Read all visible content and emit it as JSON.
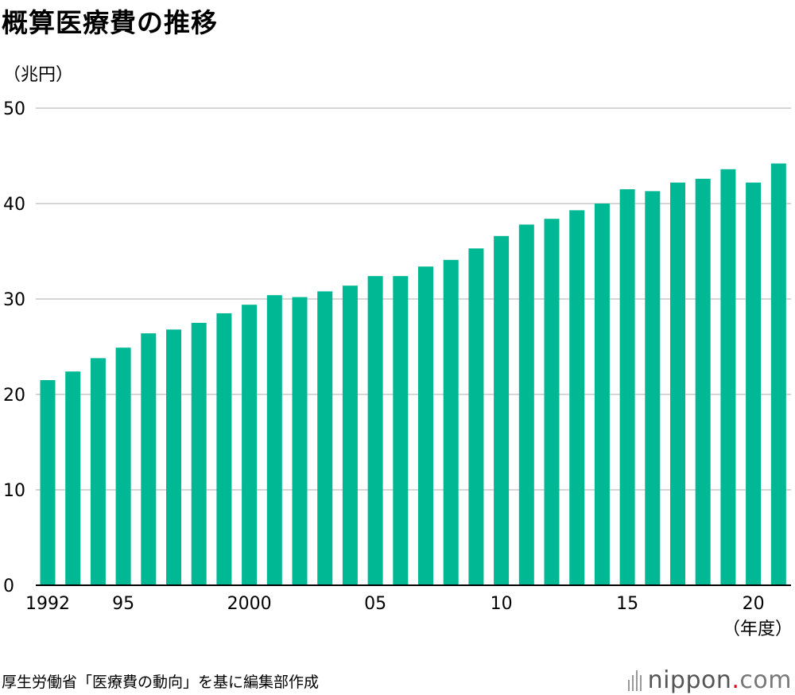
{
  "title": "概算医療費の推移",
  "source": "厚生労働省「医療費の動向」を基に編集部作成",
  "brand": {
    "name": "nippon",
    "dot": ".",
    "tld": "com",
    "icon": "nippon-bars-logo-icon"
  },
  "colors": {
    "bar": "#00b894",
    "grid": "#c8c8c8",
    "axis": "#000000",
    "brand_dot": "#e60012"
  },
  "chart_data": {
    "type": "bar",
    "title": "概算医療費の推移",
    "ylabel": "（兆円）",
    "xlabel": "（年度）",
    "ylim": [
      0,
      50
    ],
    "yticks": [
      0,
      10,
      20,
      30,
      40,
      50
    ],
    "grid": true,
    "categories": [
      1992,
      1993,
      1994,
      1995,
      1996,
      1997,
      1998,
      1999,
      2000,
      2001,
      2002,
      2003,
      2004,
      2005,
      2006,
      2007,
      2008,
      2009,
      2010,
      2011,
      2012,
      2013,
      2014,
      2015,
      2016,
      2017,
      2018,
      2019,
      2020,
      2021
    ],
    "values": [
      21.5,
      22.4,
      23.8,
      24.9,
      26.4,
      26.8,
      27.5,
      28.5,
      29.4,
      30.4,
      30.2,
      30.8,
      31.4,
      32.4,
      32.4,
      33.4,
      34.1,
      35.3,
      36.6,
      37.8,
      38.4,
      39.3,
      40.0,
      41.5,
      41.3,
      42.2,
      42.6,
      43.6,
      42.2,
      44.2
    ],
    "xtick_labels": [
      {
        "year": 1992,
        "label": "1992"
      },
      {
        "year": 1995,
        "label": "95"
      },
      {
        "year": 2000,
        "label": "2000"
      },
      {
        "year": 2005,
        "label": "05"
      },
      {
        "year": 2010,
        "label": "10"
      },
      {
        "year": 2015,
        "label": "15"
      },
      {
        "year": 2020,
        "label": "20"
      }
    ]
  }
}
